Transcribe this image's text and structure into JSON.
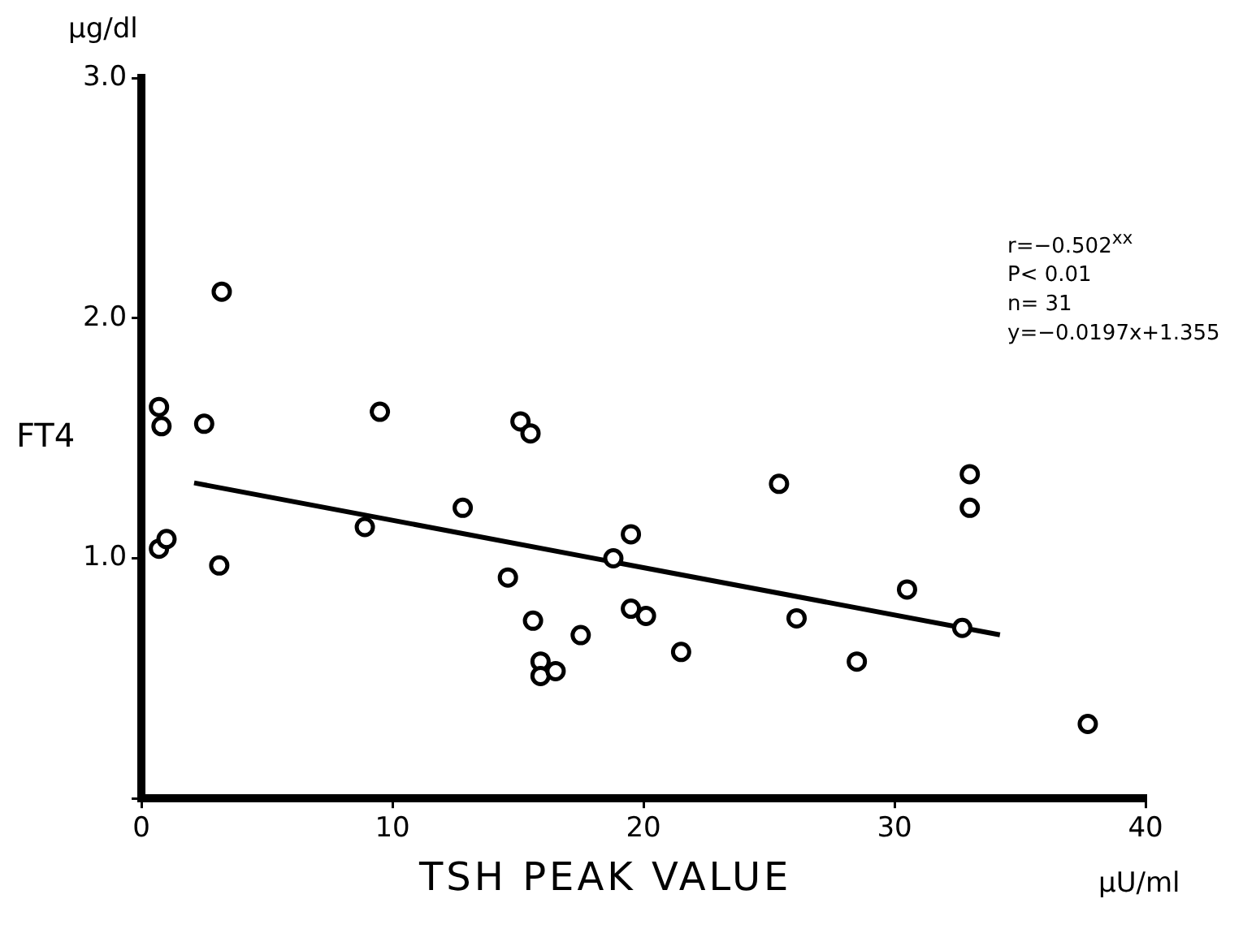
{
  "chart_data": {
    "type": "scatter",
    "xlabel": "TSH PEAK VALUE",
    "ylabel": "FT4",
    "xlim": [
      0,
      40
    ],
    "ylim": [
      0,
      3
    ],
    "xticks": [
      0,
      10,
      20,
      30,
      40
    ],
    "yticks": [
      {
        "value": 0,
        "label": null
      },
      {
        "value": 1,
        "label": "1.0"
      },
      {
        "value": 2,
        "label": "2.0"
      },
      {
        "value": 3,
        "label": "3.0"
      }
    ],
    "grid": false,
    "legend": false,
    "series": [
      {
        "type": "scatter",
        "color": "#000000",
        "marker": "circle",
        "x": [
          0.7,
          0.8,
          0.7,
          1.0,
          2.5,
          3.2,
          3.1,
          8.9,
          9.5,
          12.8,
          15.1,
          15.5,
          14.6,
          15.6,
          15.9,
          15.9,
          16.5,
          17.5,
          18.8,
          19.5,
          19.5,
          20.1,
          21.5,
          25.4,
          26.1,
          28.5,
          30.5,
          32.7,
          33.0,
          33.0,
          37.7
        ],
        "values": [
          1.63,
          1.55,
          1.04,
          1.08,
          1.56,
          2.11,
          0.97,
          1.13,
          1.61,
          1.21,
          1.57,
          1.52,
          0.92,
          0.74,
          0.57,
          0.51,
          0.53,
          0.68,
          1.0,
          1.1,
          0.79,
          0.76,
          0.61,
          1.31,
          0.75,
          0.57,
          0.87,
          0.71,
          1.35,
          1.21,
          0.31
        ]
      },
      {
        "type": "line",
        "color": "#000000",
        "marker": "none",
        "line_style": "solid",
        "x": [
          2.1,
          34.2
        ],
        "values": [
          1.314,
          0.681
        ]
      }
    ],
    "annotations": [
      "μg/dl",
      "μU/ml",
      "r=−0.502$^{xx}$",
      "P< 0.01",
      "n= 31",
      "y=−0.0197x+1.355"
    ]
  }
}
